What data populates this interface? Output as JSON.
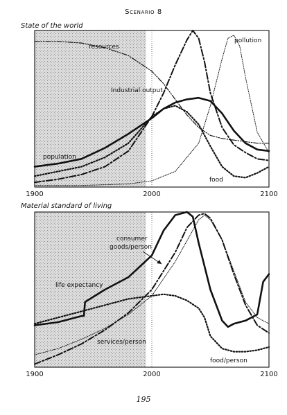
{
  "heading": "Scenario 8",
  "page_number": "195",
  "colors": {
    "ink": "#111111",
    "shade": "#c9c9c9",
    "background": "#ffffff"
  },
  "chart_data": [
    {
      "type": "line",
      "title": "State of the world",
      "xlabel": "",
      "ylabel": "",
      "xlim": [
        1900,
        2100
      ],
      "ylim": [
        0,
        1
      ],
      "x_ticks": [
        "1900",
        "2000",
        "2100"
      ],
      "shaded_region": [
        1900,
        1995
      ],
      "grid": false,
      "series": [
        {
          "name": "resources",
          "style": "dash-dot-dot",
          "x": [
            1900,
            1920,
            1940,
            1960,
            1980,
            2000,
            2010,
            2020,
            2030,
            2040,
            2050,
            2060,
            2070,
            2080,
            2090,
            2100
          ],
          "y": [
            0.93,
            0.93,
            0.92,
            0.89,
            0.84,
            0.74,
            0.66,
            0.56,
            0.46,
            0.38,
            0.33,
            0.31,
            0.3,
            0.29,
            0.28,
            0.28
          ]
        },
        {
          "name": "industrial output",
          "style": "dash-dot",
          "x": [
            1900,
            1920,
            1940,
            1960,
            1980,
            2000,
            2010,
            2020,
            2030,
            2035,
            2040,
            2045,
            2050,
            2060,
            2070,
            2080,
            2090,
            2100
          ],
          "y": [
            0.03,
            0.05,
            0.08,
            0.13,
            0.23,
            0.45,
            0.6,
            0.78,
            0.94,
            1.0,
            0.95,
            0.8,
            0.6,
            0.38,
            0.27,
            0.22,
            0.18,
            0.17
          ]
        },
        {
          "name": "population",
          "style": "solid-thick",
          "x": [
            1900,
            1920,
            1940,
            1960,
            1980,
            2000,
            2010,
            2020,
            2030,
            2040,
            2050,
            2060,
            2070,
            2080,
            2090,
            2100
          ],
          "y": [
            0.13,
            0.15,
            0.18,
            0.25,
            0.34,
            0.44,
            0.5,
            0.54,
            0.56,
            0.57,
            0.55,
            0.47,
            0.36,
            0.28,
            0.24,
            0.23
          ]
        },
        {
          "name": "food",
          "style": "dotted",
          "x": [
            1900,
            1920,
            1940,
            1960,
            1980,
            2000,
            2010,
            2020,
            2030,
            2040,
            2050,
            2060,
            2070,
            2080,
            2090,
            2100
          ],
          "y": [
            0.07,
            0.1,
            0.13,
            0.19,
            0.28,
            0.45,
            0.5,
            0.52,
            0.48,
            0.4,
            0.26,
            0.13,
            0.07,
            0.06,
            0.09,
            0.13
          ]
        },
        {
          "name": "pollution",
          "style": "dotted-fine",
          "x": [
            1900,
            1940,
            1980,
            2000,
            2020,
            2040,
            2050,
            2060,
            2065,
            2070,
            2075,
            2080,
            2090,
            2100
          ],
          "y": [
            0.01,
            0.01,
            0.02,
            0.04,
            0.1,
            0.28,
            0.52,
            0.82,
            0.95,
            0.97,
            0.9,
            0.7,
            0.35,
            0.22
          ]
        }
      ]
    },
    {
      "type": "line",
      "title": "Material standard of living",
      "xlabel": "",
      "ylabel": "",
      "xlim": [
        1900,
        2100
      ],
      "ylim": [
        0,
        1
      ],
      "x_ticks": [
        "1900",
        "2000",
        "2100"
      ],
      "shaded_region": [
        1900,
        1995
      ],
      "grid": false,
      "series": [
        {
          "name": "consumer goods/person",
          "style": "dash-dot",
          "x": [
            1900,
            1920,
            1940,
            1960,
            1980,
            2000,
            2020,
            2030,
            2040,
            2045,
            2050,
            2060,
            2070,
            2080,
            2090,
            2100
          ],
          "y": [
            0.02,
            0.08,
            0.15,
            0.24,
            0.35,
            0.5,
            0.74,
            0.9,
            0.98,
            0.99,
            0.96,
            0.82,
            0.6,
            0.4,
            0.27,
            0.22
          ]
        },
        {
          "name": "life expectancy",
          "style": "solid-thick",
          "x": [
            1900,
            1920,
            1940,
            1942,
            1943,
            1960,
            1980,
            2000,
            2010,
            2020,
            2030,
            2035,
            2040,
            2050,
            2060,
            2065,
            2070,
            2080,
            2090,
            2095,
            2100
          ],
          "y": [
            0.27,
            0.29,
            0.33,
            0.33,
            0.42,
            0.5,
            0.58,
            0.72,
            0.88,
            0.98,
            1.0,
            0.97,
            0.8,
            0.5,
            0.3,
            0.26,
            0.28,
            0.3,
            0.34,
            0.55,
            0.6
          ]
        },
        {
          "name": "services/person",
          "style": "dotted-fine",
          "x": [
            1900,
            1920,
            1940,
            1960,
            1980,
            2000,
            2020,
            2040,
            2045,
            2050,
            2060,
            2070,
            2080,
            2090,
            2100
          ],
          "y": [
            0.08,
            0.12,
            0.18,
            0.25,
            0.34,
            0.46,
            0.68,
            0.95,
            0.98,
            0.95,
            0.82,
            0.62,
            0.42,
            0.32,
            0.28
          ]
        },
        {
          "name": "food/person",
          "style": "dotted",
          "x": [
            1900,
            1920,
            1940,
            1960,
            1980,
            2000,
            2010,
            2020,
            2030,
            2040,
            2045,
            2050,
            2060,
            2070,
            2080,
            2090,
            2100
          ],
          "y": [
            0.28,
            0.32,
            0.36,
            0.4,
            0.44,
            0.46,
            0.47,
            0.46,
            0.43,
            0.38,
            0.32,
            0.2,
            0.12,
            0.1,
            0.1,
            0.11,
            0.13
          ]
        }
      ]
    }
  ],
  "labels_top": {
    "resources": "resources",
    "industrial_output": "Industrial output",
    "pollution": "pollution",
    "population": "population",
    "food": "food"
  },
  "labels_bottom": {
    "consumer_goods_1": "consumer",
    "consumer_goods_2": "goods/person",
    "life_expectancy": "life expectancy",
    "services": "services/person",
    "food_person": "food/person"
  }
}
